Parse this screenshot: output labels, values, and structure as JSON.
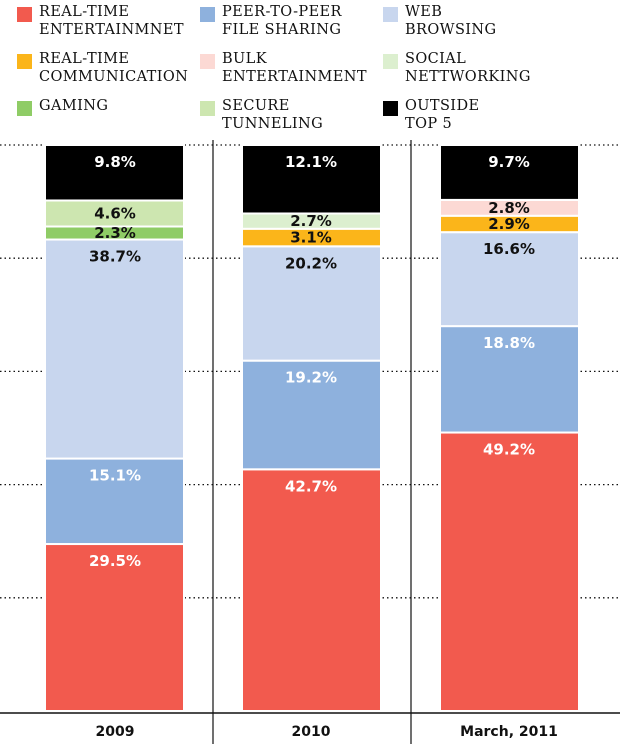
{
  "chart_data": {
    "type": "bar",
    "stacked": true,
    "categories": [
      "2009",
      "2010",
      "March, 2011"
    ],
    "series": [
      {
        "name": "REAL-TIME ENTERTAINMNET",
        "color": "#f25a4e",
        "values": [
          29.5,
          42.7,
          49.2
        ],
        "labels": [
          "29.5%",
          "42.7%",
          "49.2%"
        ]
      },
      {
        "name": "PEER-TO-PEER FILE SHARING",
        "color": "#8eb1dd",
        "values": [
          15.1,
          19.2,
          18.8
        ],
        "labels": [
          "15.1%",
          "19.2%",
          "18.8%"
        ]
      },
      {
        "name": "WEB BROWSING",
        "color": "#c8d6ee",
        "values": [
          38.7,
          20.2,
          16.6
        ],
        "labels": [
          "38.7%",
          "20.2%",
          "16.6%"
        ]
      },
      {
        "name": "REAL-TIME COMMUNICATION",
        "color": "#fbb51a",
        "values": [
          0,
          3.1,
          2.9
        ],
        "labels": [
          "",
          "3.1%",
          "2.9%"
        ]
      },
      {
        "name": "BULK ENTERTAINMENT",
        "color": "#fcd9d4",
        "values": [
          0,
          0,
          2.8
        ],
        "labels": [
          "",
          "",
          "2.8%"
        ]
      },
      {
        "name": "SOCIAL NETTWORKING",
        "color": "#dcefcf",
        "values": [
          0,
          2.7,
          0
        ],
        "labels": [
          "",
          "2.7%",
          ""
        ]
      },
      {
        "name": "GAMING",
        "color": "#8fcc66",
        "values": [
          2.3,
          0,
          0
        ],
        "labels": [
          "2.3%",
          "",
          ""
        ]
      },
      {
        "name": "SECURE TUNNELING",
        "color": "#cde6b0",
        "values": [
          4.6,
          0,
          0
        ],
        "labels": [
          "4.6%",
          "",
          ""
        ]
      },
      {
        "name": "OUTSIDE TOP 5",
        "color": "#000000",
        "values": [
          9.8,
          12.1,
          9.7
        ],
        "labels": [
          "9.8%",
          "12.1%",
          "9.7%"
        ]
      }
    ],
    "ylim": [
      0,
      100
    ],
    "grid": true,
    "legend": "top"
  },
  "legend_text": [
    "REAL-TIME\nENTERTAINMNET",
    "PEER-TO-PEER\nFILE SHARING",
    "WEB\nBROWSING",
    "REAL-TIME\nCOMMUNICATION",
    "BULK\nENTERTAINMENT",
    "SOCIAL\nNETTWORKING",
    "GAMING",
    "SECURE\nTUNNELING",
    "OUTSIDE\nTOP 5"
  ]
}
